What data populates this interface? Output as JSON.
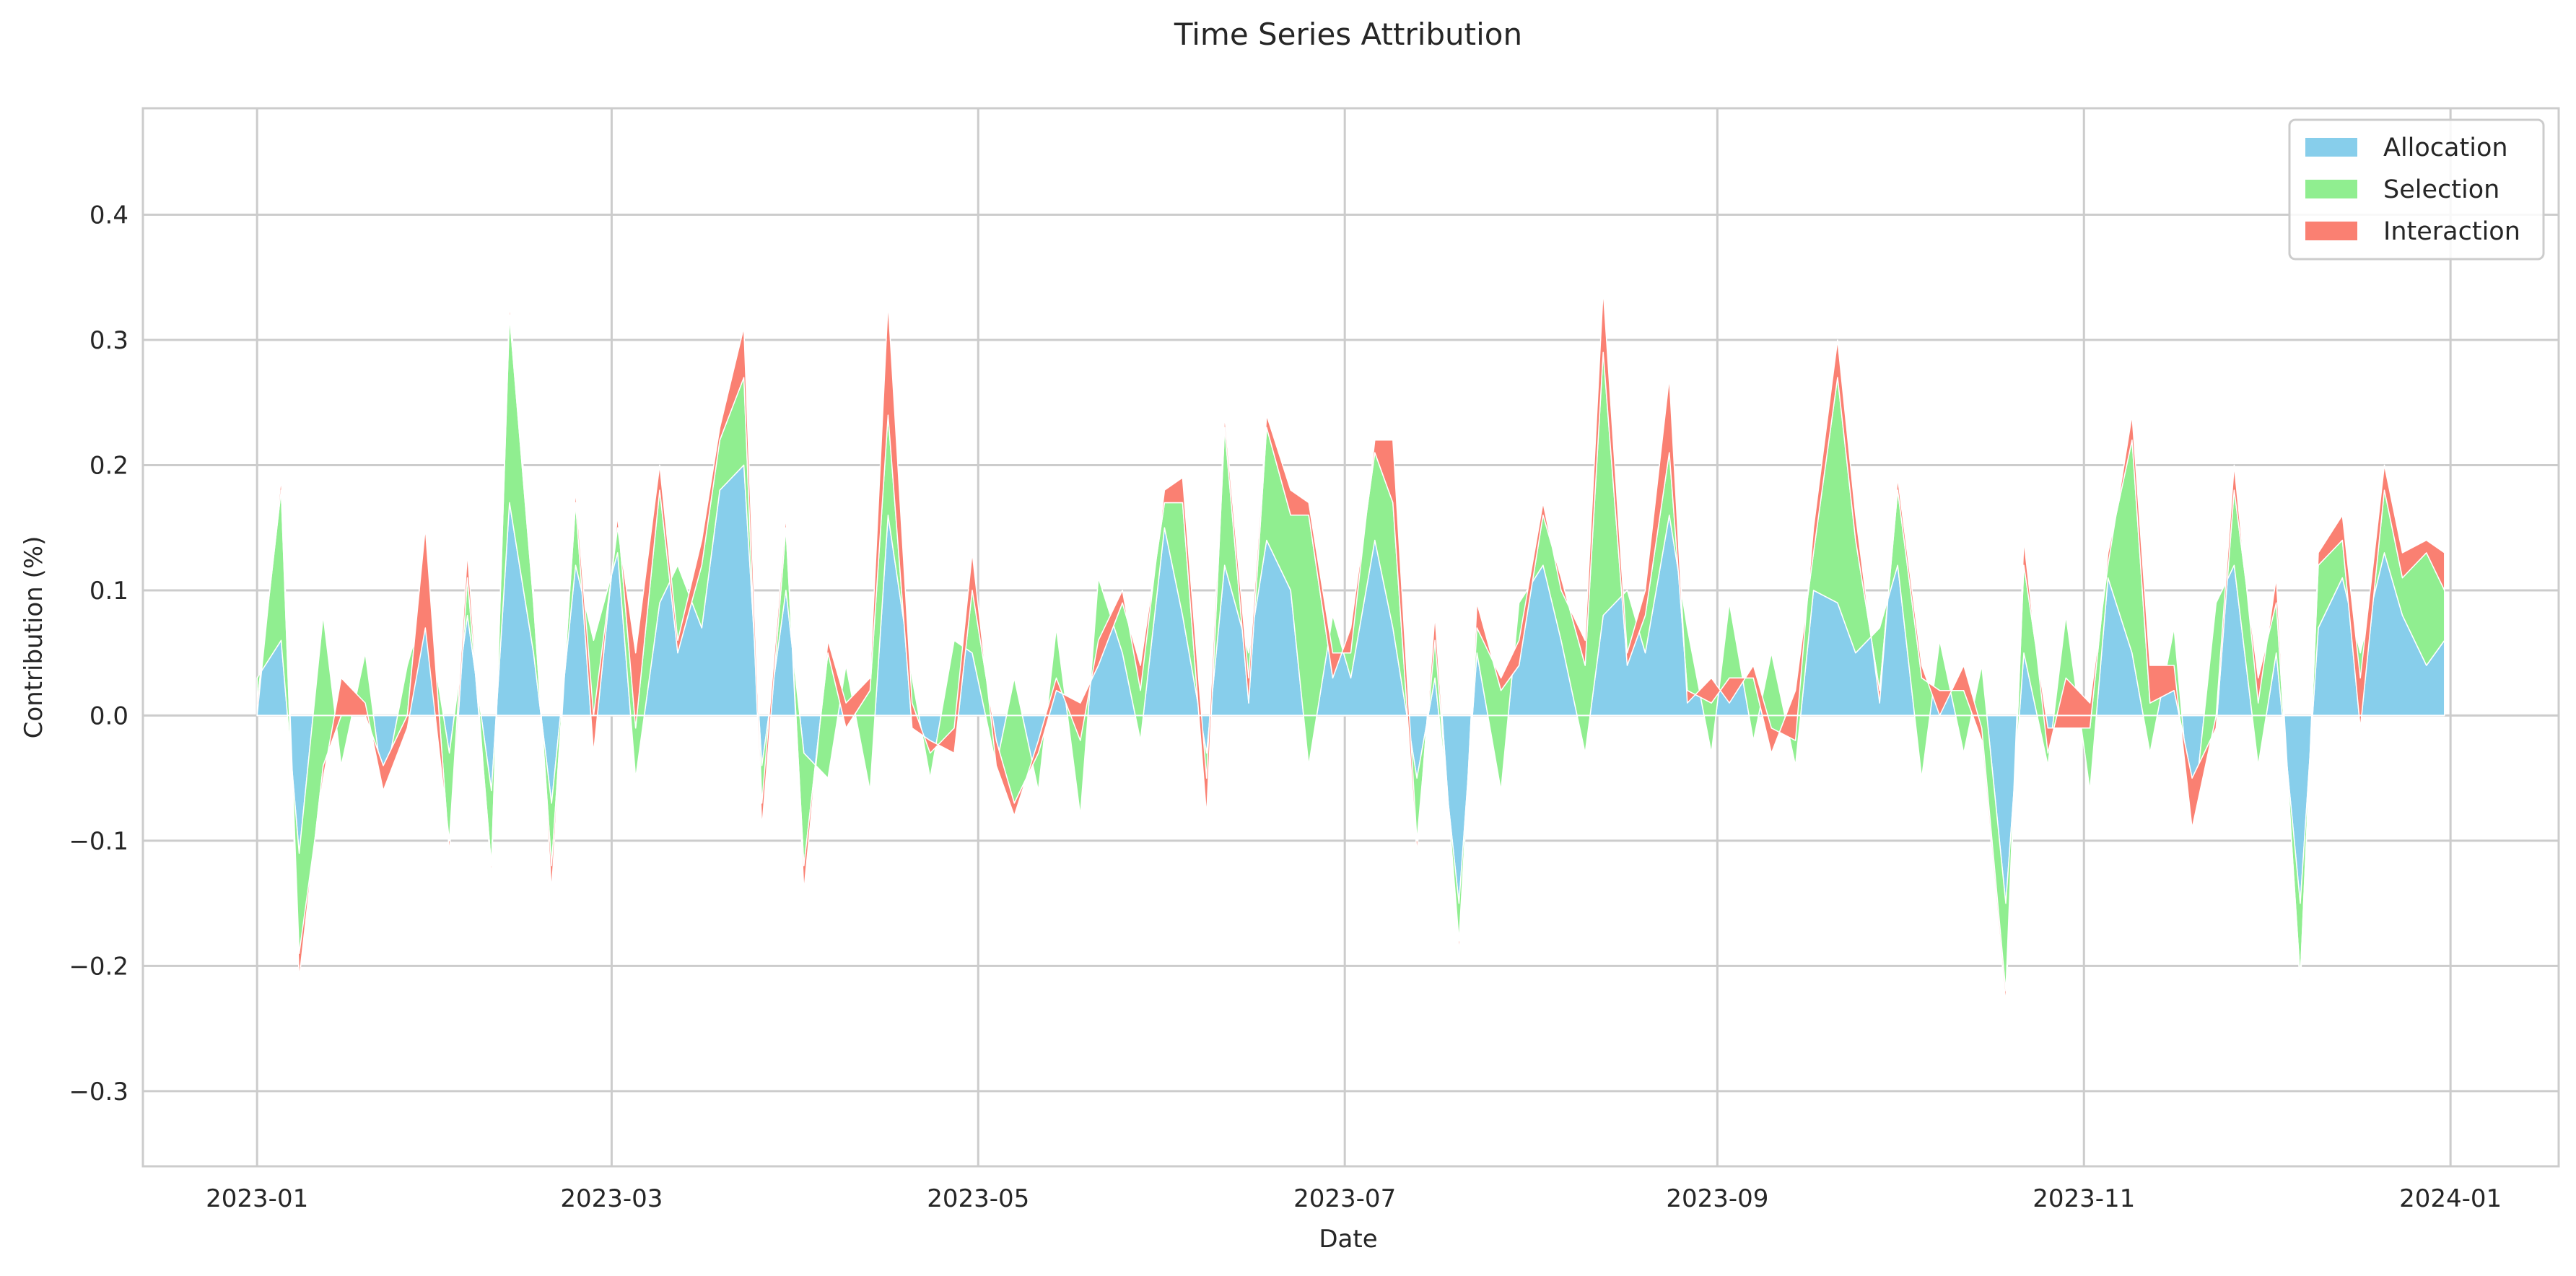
{
  "chart_data": {
    "type": "area",
    "stacked": true,
    "title": "Time Series Attribution",
    "xlabel": "Date",
    "ylabel": "Contribution (%)",
    "xlim": [
      "2022-12-13",
      "2024-01-19"
    ],
    "ylim": [
      -0.36,
      0.485
    ],
    "grid": true,
    "legend_position": "top-right",
    "x_ticks": [
      {
        "date": "2023-01-01",
        "label": "2023-01"
      },
      {
        "date": "2023-03-01",
        "label": "2023-03"
      },
      {
        "date": "2023-05-01",
        "label": "2023-05"
      },
      {
        "date": "2023-07-01",
        "label": "2023-07"
      },
      {
        "date": "2023-09-01",
        "label": "2023-09"
      },
      {
        "date": "2023-11-01",
        "label": "2023-11"
      },
      {
        "date": "2024-01-01",
        "label": "2024-01"
      }
    ],
    "y_ticks": [
      {
        "value": -0.3,
        "label": "−0.3"
      },
      {
        "value": -0.2,
        "label": "−0.2"
      },
      {
        "value": -0.1,
        "label": "−0.1"
      },
      {
        "value": 0.0,
        "label": "0.0"
      },
      {
        "value": 0.1,
        "label": "0.1"
      },
      {
        "value": 0.2,
        "label": "0.2"
      },
      {
        "value": 0.3,
        "label": "0.3"
      },
      {
        "value": 0.4,
        "label": "0.4"
      }
    ],
    "x": [
      "2023-01-01",
      "2023-01-05",
      "2023-01-08",
      "2023-01-12",
      "2023-01-15",
      "2023-01-19",
      "2023-01-22",
      "2023-01-26",
      "2023-01-29",
      "2023-02-02",
      "2023-02-05",
      "2023-02-09",
      "2023-02-12",
      "2023-02-16",
      "2023-02-19",
      "2023-02-23",
      "2023-02-26",
      "2023-03-02",
      "2023-03-05",
      "2023-03-09",
      "2023-03-12",
      "2023-03-16",
      "2023-03-19",
      "2023-03-23",
      "2023-03-26",
      "2023-03-30",
      "2023-04-02",
      "2023-04-06",
      "2023-04-09",
      "2023-04-13",
      "2023-04-16",
      "2023-04-20",
      "2023-04-23",
      "2023-04-27",
      "2023-04-30",
      "2023-05-04",
      "2023-05-07",
      "2023-05-11",
      "2023-05-14",
      "2023-05-18",
      "2023-05-21",
      "2023-05-25",
      "2023-05-28",
      "2023-06-01",
      "2023-06-04",
      "2023-06-08",
      "2023-06-11",
      "2023-06-15",
      "2023-06-18",
      "2023-06-22",
      "2023-06-25",
      "2023-06-29",
      "2023-07-02",
      "2023-07-06",
      "2023-07-09",
      "2023-07-13",
      "2023-07-16",
      "2023-07-20",
      "2023-07-23",
      "2023-07-27",
      "2023-07-30",
      "2023-08-03",
      "2023-08-06",
      "2023-08-10",
      "2023-08-13",
      "2023-08-17",
      "2023-08-20",
      "2023-08-24",
      "2023-08-27",
      "2023-08-31",
      "2023-09-03",
      "2023-09-07",
      "2023-09-10",
      "2023-09-14",
      "2023-09-17",
      "2023-09-21",
      "2023-09-24",
      "2023-09-28",
      "2023-10-01",
      "2023-10-05",
      "2023-10-08",
      "2023-10-12",
      "2023-10-15",
      "2023-10-19",
      "2023-10-22",
      "2023-10-26",
      "2023-10-29",
      "2023-11-02",
      "2023-11-05",
      "2023-11-09",
      "2023-11-12",
      "2023-11-16",
      "2023-11-19",
      "2023-11-23",
      "2023-11-26",
      "2023-11-30",
      "2023-12-03",
      "2023-12-07",
      "2023-12-10",
      "2023-12-14",
      "2023-12-17",
      "2023-12-21",
      "2023-12-24",
      "2023-12-28",
      "2023-12-31"
    ],
    "series": [
      {
        "name": "Allocation",
        "color": "#87CEEB",
        "values": [
          0.03,
          0.06,
          -0.11,
          0.08,
          -0.04,
          0.05,
          -0.06,
          0.04,
          0.09,
          -0.03,
          0.08,
          -0.06,
          0.17,
          0.05,
          -0.07,
          0.12,
          0.06,
          0.13,
          -0.05,
          0.09,
          0.12,
          0.07,
          0.18,
          0.2,
          -0.04,
          0.1,
          -0.03,
          -0.05,
          0.04,
          -0.06,
          0.16,
          0.03,
          -0.05,
          0.06,
          0.05,
          -0.04,
          0.03,
          -0.06,
          0.07,
          -0.08,
          0.11,
          0.05,
          -0.02,
          0.15,
          0.08,
          -0.03,
          0.12,
          0.05,
          0.14,
          0.1,
          -0.04,
          0.08,
          0.03,
          0.14,
          0.07,
          -0.05,
          0.03,
          -0.15,
          0.05,
          -0.06,
          0.09,
          0.12,
          0.06,
          -0.03,
          0.08,
          0.1,
          0.05,
          0.16,
          0.07,
          -0.03,
          0.09,
          -0.02,
          0.05,
          -0.04,
          0.1,
          0.09,
          0.05,
          0.07,
          0.12,
          -0.05,
          0.06,
          -0.03,
          0.04,
          -0.15,
          0.05,
          -0.04,
          0.08,
          -0.06,
          0.11,
          0.05,
          -0.03,
          0.07,
          -0.09,
          0.09,
          0.12,
          -0.04,
          0.05,
          -0.15,
          0.07,
          0.11,
          0.05,
          0.13,
          0.08,
          0.04,
          0.06
        ]
      },
      {
        "name": "Selection",
        "color": "#90EE90",
        "values": [
          -0.02,
          0.12,
          -0.1,
          -0.12,
          0.04,
          -0.05,
          0.02,
          -0.04,
          0.06,
          -0.08,
          0.03,
          -0.06,
          0.15,
          0.04,
          -0.05,
          0.05,
          -0.09,
          0.03,
          0.04,
          0.09,
          -0.07,
          0.05,
          0.04,
          0.07,
          -0.05,
          0.05,
          -0.09,
          0.1,
          -0.05,
          0.08,
          0.08,
          -0.04,
          0.03,
          -0.09,
          0.05,
          0.02,
          -0.1,
          0.03,
          -0.05,
          0.09,
          -0.07,
          0.04,
          0.06,
          0.02,
          0.09,
          -0.05,
          0.11,
          -0.04,
          0.09,
          0.06,
          0.2,
          -0.05,
          0.04,
          0.07,
          0.1,
          -0.06,
          0.05,
          -0.04,
          0.04,
          0.08,
          -0.05,
          0.04,
          0.05,
          0.07,
          0.21,
          -0.06,
          0.03,
          0.05,
          -0.05,
          0.04,
          -0.06,
          0.05,
          -0.08,
          0.06,
          0.03,
          0.18,
          0.09,
          -0.05,
          0.06,
          0.08,
          -0.04,
          0.05,
          -0.06,
          -0.08,
          0.07,
          0.03,
          -0.09,
          0.05,
          0.02,
          0.17,
          0.04,
          -0.05,
          0.04,
          -0.1,
          0.06,
          0.07,
          0.04,
          -0.06,
          0.05,
          0.03,
          -0.06,
          0.05,
          0.03,
          0.09,
          0.04
        ]
      },
      {
        "name": "Interaction",
        "color": "#FA8072",
        "values": [
          -0.01,
          0.01,
          0.02,
          -0.01,
          0.03,
          0.01,
          -0.02,
          -0.01,
          -0.08,
          0.01,
          0.02,
          -0.01,
          0.01,
          0.01,
          -0.02,
          0.01,
          0.03,
          -0.01,
          0.06,
          0.02,
          0.01,
          0.02,
          0.01,
          0.04,
          0.02,
          0.01,
          -0.02,
          0.01,
          0.02,
          0.01,
          0.09,
          0.02,
          -0.01,
          0.02,
          0.03,
          -0.02,
          -0.01,
          0.01,
          0.01,
          -0.03,
          0.02,
          0.01,
          -0.02,
          0.01,
          0.02,
          0.03,
          0.01,
          0.02,
          0.01,
          0.02,
          0.01,
          0.02,
          -0.02,
          0.01,
          0.05,
          0.01,
          -0.02,
          0.01,
          -0.02,
          0.01,
          0.02,
          0.01,
          -0.01,
          0.02,
          0.05,
          0.01,
          0.02,
          0.06,
          -0.01,
          0.02,
          -0.02,
          0.01,
          0.02,
          -0.04,
          0.02,
          0.03,
          0.02,
          -0.01,
          0.01,
          0.01,
          -0.02,
          0.02,
          0.01,
          0.01,
          0.02,
          -0.02,
          0.04,
          0.02,
          -0.01,
          0.02,
          0.03,
          0.02,
          -0.04,
          0.01,
          0.02,
          -0.02,
          0.02,
          -0.01,
          0.01,
          0.02,
          0.04,
          0.02,
          0.02,
          0.01,
          0.03
        ]
      }
    ]
  }
}
